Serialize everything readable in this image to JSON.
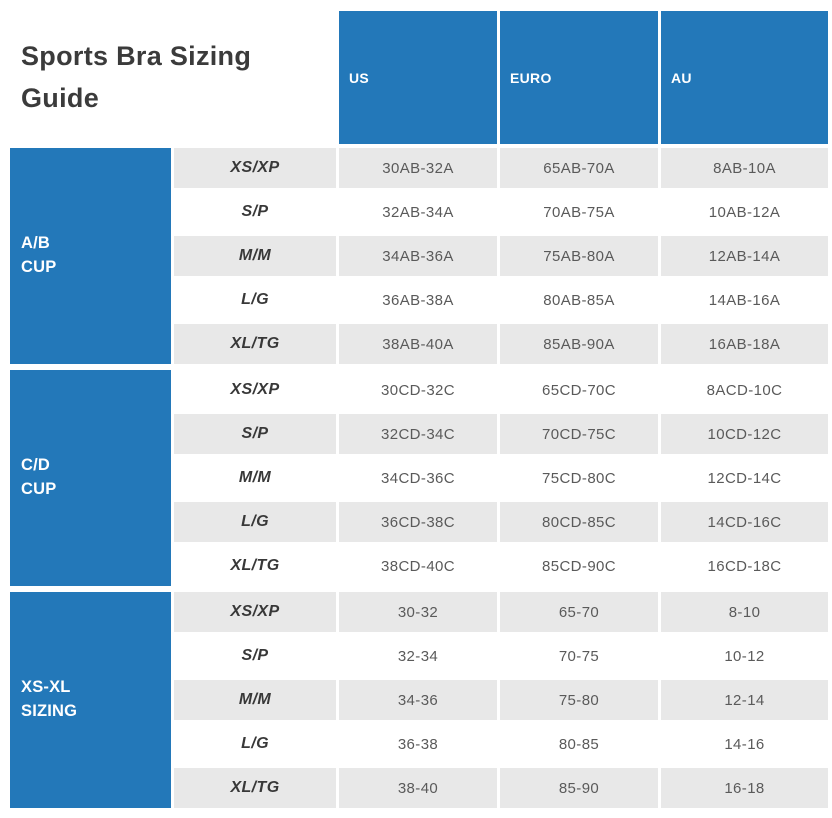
{
  "title": "Sports Bra Sizing Guide",
  "colors": {
    "accent_blue": "#2378b9",
    "row_alt_gray": "#e8e8e8",
    "title_text": "#3b3b3b",
    "data_text": "#5a5a5a"
  },
  "chart_data": {
    "type": "table",
    "title": "Sports Bra Sizing Guide",
    "columns": [
      "US",
      "EURO",
      "AU"
    ],
    "row_groups": [
      {
        "label": "A/B CUP",
        "label_display": "A/B\nCUP",
        "rows": [
          {
            "size": "XS/XP",
            "us": "30AB-32A",
            "euro": "65AB-70A",
            "au": "8AB-10A"
          },
          {
            "size": "S/P",
            "us": "32AB-34A",
            "euro": "70AB-75A",
            "au": "10AB-12A"
          },
          {
            "size": "M/M",
            "us": "34AB-36A",
            "euro": "75AB-80A",
            "au": "12AB-14A"
          },
          {
            "size": "L/G",
            "us": "36AB-38A",
            "euro": "80AB-85A",
            "au": "14AB-16A"
          },
          {
            "size": "XL/TG",
            "us": "38AB-40A",
            "euro": "85AB-90A",
            "au": "16AB-18A"
          }
        ]
      },
      {
        "label": "C/D CUP",
        "label_display": "C/D\nCUP",
        "rows": [
          {
            "size": "XS/XP",
            "us": "30CD-32C",
            "euro": "65CD-70C",
            "au": "8ACD-10C"
          },
          {
            "size": "S/P",
            "us": "32CD-34C",
            "euro": "70CD-75C",
            "au": "10CD-12C"
          },
          {
            "size": "M/M",
            "us": "34CD-36C",
            "euro": "75CD-80C",
            "au": "12CD-14C"
          },
          {
            "size": "L/G",
            "us": "36CD-38C",
            "euro": "80CD-85C",
            "au": "14CD-16C"
          },
          {
            "size": "XL/TG",
            "us": "38CD-40C",
            "euro": "85CD-90C",
            "au": "16CD-18C"
          }
        ]
      },
      {
        "label": "XS-XL SIZING",
        "label_display": "XS-XL\nSIZING",
        "rows": [
          {
            "size": "XS/XP",
            "us": "30-32",
            "euro": "65-70",
            "au": "8-10"
          },
          {
            "size": "S/P",
            "us": "32-34",
            "euro": "70-75",
            "au": "10-12"
          },
          {
            "size": "M/M",
            "us": "34-36",
            "euro": "75-80",
            "au": "12-14"
          },
          {
            "size": "L/G",
            "us": "36-38",
            "euro": "80-85",
            "au": "14-16"
          },
          {
            "size": "XL/TG",
            "us": "38-40",
            "euro": "85-90",
            "au": "16-18"
          }
        ]
      }
    ]
  }
}
